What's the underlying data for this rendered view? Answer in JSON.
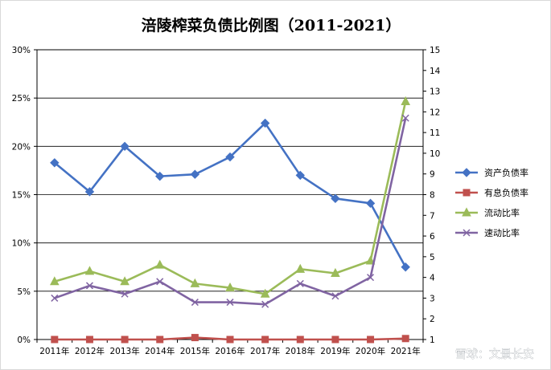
{
  "chart_data": {
    "type": "line",
    "title": "涪陵榨菜负债比例图（2011-2021）",
    "categories": [
      "2011年",
      "2012年",
      "2013年",
      "2014年",
      "2015年",
      "2016年",
      "2017年",
      "2018年",
      "2019年",
      "2020年",
      "2021年"
    ],
    "y_left": {
      "ticks": [
        "0%",
        "5%",
        "10%",
        "15%",
        "20%",
        "25%",
        "30%"
      ],
      "min": 0,
      "max": 30
    },
    "y_right": {
      "ticks": [
        "1",
        "2",
        "3",
        "4",
        "5",
        "6",
        "7",
        "8",
        "9",
        "10",
        "11",
        "12",
        "13",
        "14",
        "15"
      ],
      "min": 1,
      "max": 15
    },
    "series": [
      {
        "name": "资产负债率",
        "axis": "left",
        "color": "#4472c4",
        "marker": "diamond",
        "values": [
          18.3,
          15.3,
          20.0,
          16.9,
          17.1,
          18.9,
          22.4,
          17.0,
          14.6,
          14.1,
          7.5
        ]
      },
      {
        "name": "有息负债率",
        "axis": "left",
        "color": "#c0504d",
        "marker": "square",
        "values": [
          0.0,
          0.0,
          0.0,
          0.0,
          0.2,
          0.0,
          0.0,
          0.0,
          0.0,
          0.0,
          0.1
        ]
      },
      {
        "name": "流动比率",
        "axis": "right",
        "color": "#9bbb59",
        "marker": "triangle",
        "values": [
          3.8,
          4.3,
          3.8,
          4.6,
          3.7,
          3.5,
          3.2,
          4.4,
          4.2,
          4.8,
          12.5
        ]
      },
      {
        "name": "速动比率",
        "axis": "right",
        "color": "#8064a2",
        "marker": "x",
        "values": [
          3.0,
          3.6,
          3.2,
          3.8,
          2.8,
          2.8,
          2.7,
          3.7,
          3.1,
          4.0,
          11.7
        ]
      }
    ],
    "grid": true,
    "legend": "right"
  },
  "watermark": "雪球：文景长安"
}
